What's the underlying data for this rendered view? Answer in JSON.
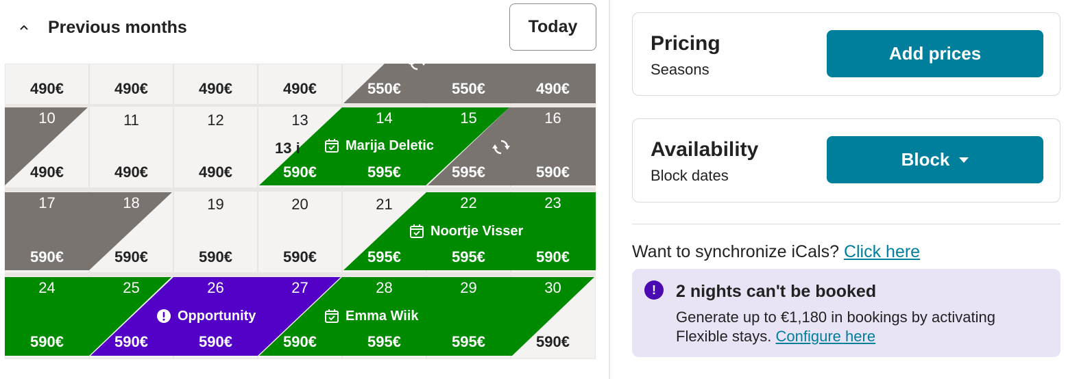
{
  "calendar": {
    "previous_months_label": "Previous months",
    "today_label": "Today",
    "week_top": {
      "prices": [
        "490€",
        "490€",
        "490€",
        "490€",
        "550€",
        "550€",
        "490€"
      ]
    },
    "week1": {
      "days": [
        "10",
        "11",
        "12",
        "13",
        "14",
        "15",
        "16"
      ],
      "prices": [
        "490€",
        "490€",
        "490€",
        "590€",
        "595€",
        "595€",
        "590€"
      ],
      "truncated_text": "13 i"
    },
    "week2": {
      "days": [
        "17",
        "18",
        "19",
        "20",
        "21",
        "22",
        "23"
      ],
      "prices": [
        "590€",
        "590€",
        "590€",
        "590€",
        "595€",
        "595€",
        "590€"
      ]
    },
    "week3": {
      "days": [
        "24",
        "25",
        "26",
        "27",
        "28",
        "29",
        "30"
      ],
      "prices": [
        "590€",
        "590€",
        "590€",
        "590€",
        "595€",
        "595€",
        "590€"
      ]
    },
    "bookings": {
      "marija": "Marija Deletic",
      "noortje": "Noortje Visser",
      "emma": "Emma Wiik",
      "opportunity": "Opportunity"
    },
    "colors": {
      "booked": "#008a00",
      "blocked": "#7a7471",
      "opportunity": "#5300c7",
      "available": "#f5f3f2"
    }
  },
  "pricing": {
    "title": "Pricing",
    "subtitle": "Seasons",
    "button": "Add prices"
  },
  "availability": {
    "title": "Availability",
    "subtitle": "Block dates",
    "button": "Block"
  },
  "ical": {
    "text": "Want to synchronize iCals?",
    "link": "Click here"
  },
  "notice": {
    "title": "2 nights can't be booked",
    "body": "Generate up to €1,180 in bookings by activating Flexible stays.",
    "link": "Configure here"
  },
  "accent": "#007f9d"
}
